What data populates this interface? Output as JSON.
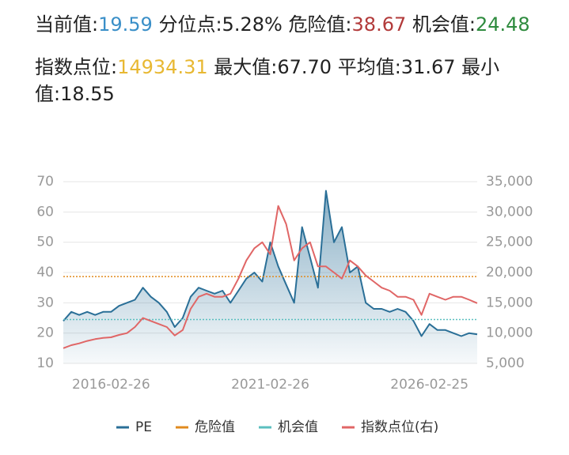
{
  "header_lines": [
    [
      {
        "label": "当前值:",
        "value_path": "chart_data.series.0.values.52",
        "color": "#3a8fc8"
      },
      {
        "label": "分位点:",
        "value": 5.28,
        "value_label": "5.28%"
      },
      {
        "label": "危险值:",
        "value_path": "chart_data.ref_lines.0.value",
        "color": "#b23a3a"
      },
      {
        "label": "机会值:",
        "value_path": "chart_data.ref_lines.1.value",
        "color": "#2e8b3e"
      }
    ],
    [
      {
        "label": "指数点位:",
        "value_path": "chart_data.series.1.values.52",
        "color": "#e8b832"
      },
      {
        "label": "最大值:",
        "value": 67.7,
        "value_label": "67.70"
      },
      {
        "label": "平均值:",
        "value": 31.67
      },
      {
        "label": "最小值:",
        "value": 18.55
      }
    ]
  ],
  "chart_data": {
    "type": "line",
    "categories": [
      null,
      null,
      null,
      null,
      null,
      null,
      "2016-02-26",
      null,
      null,
      null,
      null,
      null,
      null,
      null,
      null,
      null,
      null,
      null,
      null,
      null,
      null,
      null,
      null,
      null,
      null,
      null,
      "2021-02-26",
      null,
      null,
      null,
      null,
      null,
      null,
      null,
      null,
      null,
      null,
      null,
      null,
      null,
      null,
      null,
      null,
      null,
      null,
      null,
      "2026-02-25",
      null,
      null,
      null,
      null,
      null,
      null
    ],
    "series": [
      {
        "name": "PE",
        "color": "#2a6f97",
        "area": true,
        "values": [
          24,
          27,
          26,
          27,
          26,
          27,
          27,
          29,
          30,
          31,
          35,
          32,
          30,
          27,
          22,
          25,
          32,
          35,
          34,
          33,
          34,
          30,
          34,
          38,
          40,
          37,
          50,
          42,
          36,
          30,
          55,
          45,
          35,
          67,
          50,
          55,
          40,
          42,
          30,
          28,
          28,
          27,
          28,
          27,
          24,
          19,
          23,
          21,
          21,
          20,
          19,
          20,
          19.59
        ]
      },
      {
        "name": "指数点位(右)",
        "color": "#e06666",
        "axis": "y2",
        "values": [
          7500,
          8000,
          8300,
          8700,
          9000,
          9200,
          9300,
          9700,
          10000,
          11000,
          12500,
          12000,
          11500,
          11000,
          9600,
          10500,
          14000,
          16000,
          16500,
          16000,
          16000,
          16500,
          19000,
          22000,
          24000,
          25000,
          23000,
          31000,
          28000,
          22000,
          24000,
          25000,
          21000,
          21000,
          20000,
          19000,
          22000,
          21000,
          19500,
          18500,
          17500,
          17000,
          16000,
          16000,
          15500,
          13000,
          16500,
          16000,
          15500,
          16000,
          16000,
          15500,
          14934.31
        ]
      }
    ],
    "ref_lines": [
      {
        "name": "危险值",
        "value": 38.67,
        "color": "#e08a1e"
      },
      {
        "name": "机会值",
        "value": 24.48,
        "color": "#5bbfbf"
      }
    ],
    "ylim": [
      10,
      70
    ],
    "yticks": [
      10,
      20,
      30,
      40,
      50,
      60,
      70
    ],
    "y2lim": [
      5000,
      35000
    ],
    "y2ticks": [
      {
        "value": 5000,
        "label": "5,000"
      },
      {
        "value": 10000,
        "label": "10,000"
      },
      {
        "value": 15000,
        "label": "15,000"
      },
      {
        "value": 20000,
        "label": "20,000"
      },
      {
        "value": 25000,
        "label": "25,000"
      },
      {
        "value": 30000,
        "label": "30,000"
      },
      {
        "value": 35000,
        "label": "35,000"
      }
    ],
    "grid": true,
    "legend": "bottom"
  }
}
